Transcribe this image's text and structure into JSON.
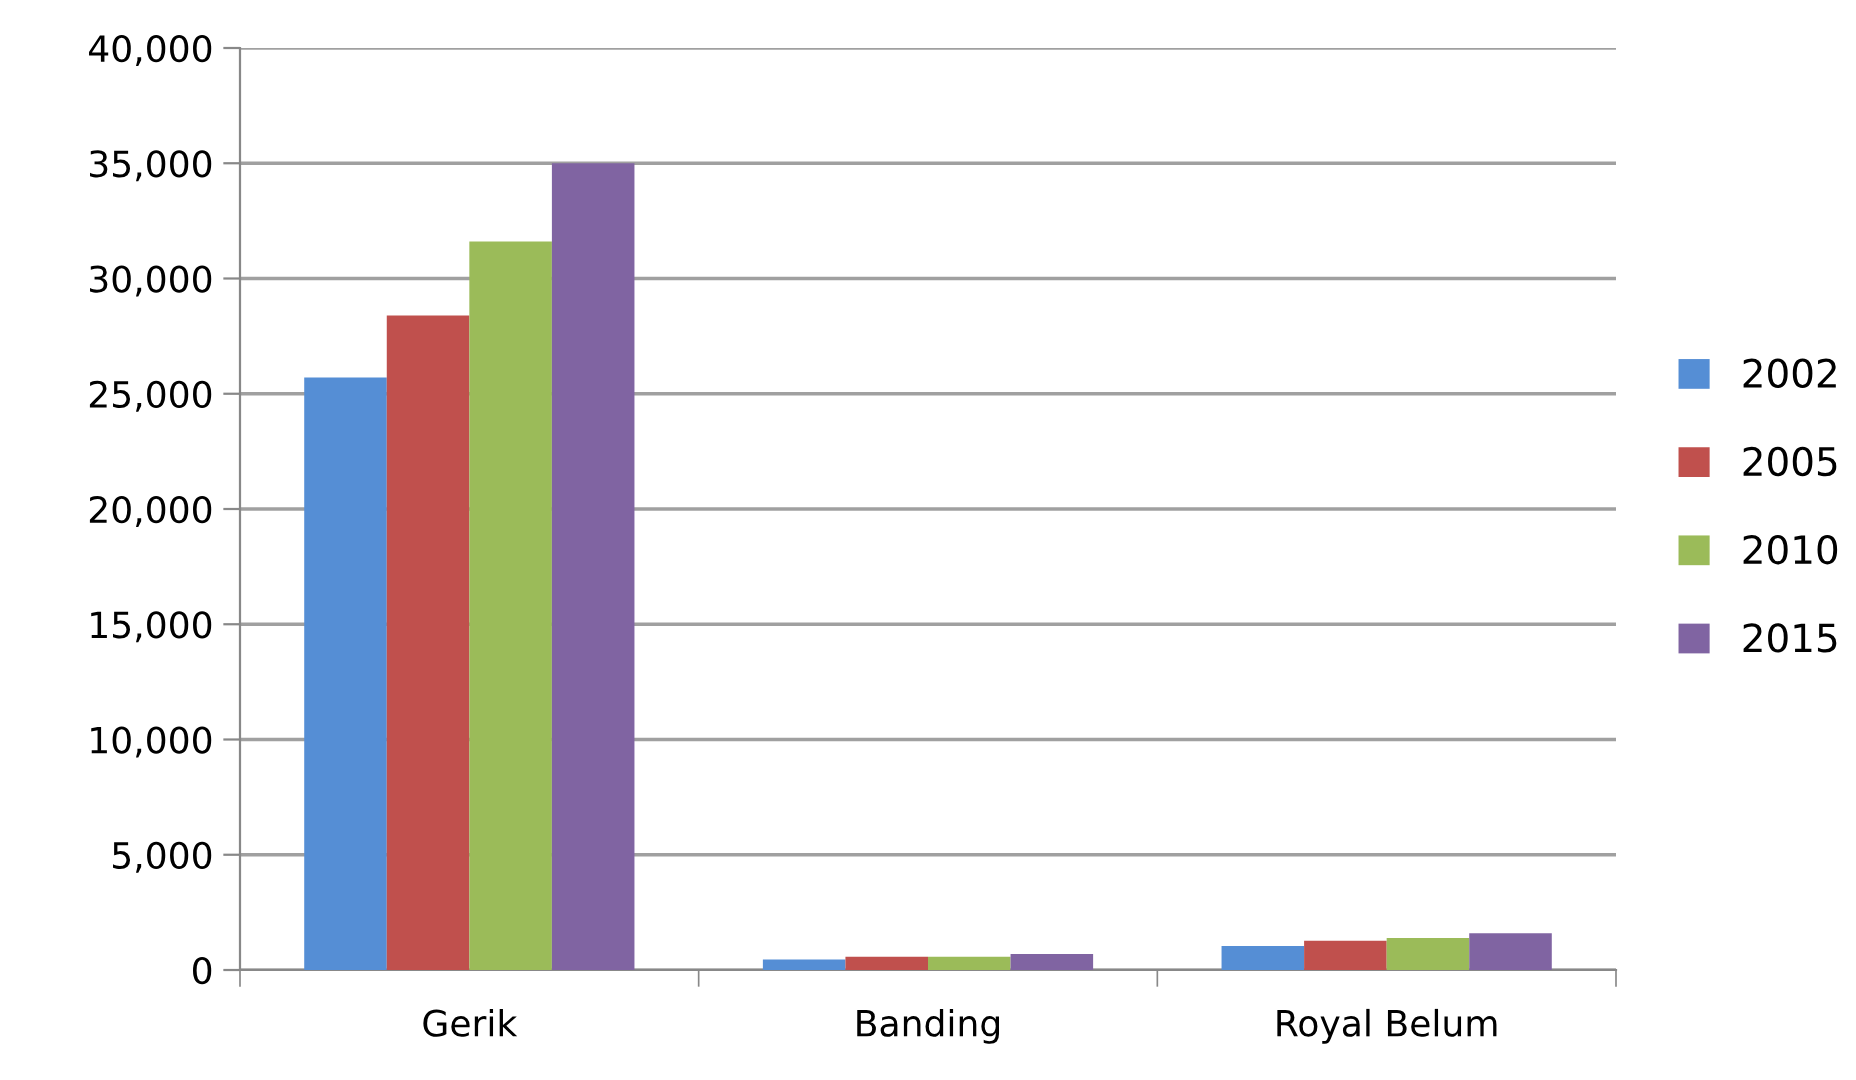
{
  "chart_data": {
    "type": "bar",
    "categories": [
      "Gerik",
      "Banding",
      "Royal Belum"
    ],
    "series": [
      {
        "name": "2002",
        "color": "#558ed5",
        "values": [
          25700,
          460,
          1040
        ]
      },
      {
        "name": "2005",
        "color": "#c0504d",
        "values": [
          28400,
          580,
          1270
        ]
      },
      {
        "name": "2010",
        "color": "#9bbb59",
        "values": [
          31600,
          580,
          1390
        ]
      },
      {
        "name": "2015",
        "color": "#8064a2",
        "values": [
          35000,
          690,
          1590
        ]
      }
    ],
    "ylim": [
      0,
      40000
    ],
    "yticks": [
      {
        "value": 0,
        "label": "0"
      },
      {
        "value": 5000,
        "label": "5,000"
      },
      {
        "value": 10000,
        "label": "10,000"
      },
      {
        "value": 15000,
        "label": "15,000"
      },
      {
        "value": 20000,
        "label": "20,000"
      },
      {
        "value": 25000,
        "label": "25,000"
      },
      {
        "value": 30000,
        "label": "30,000"
      },
      {
        "value": 35000,
        "label": "35,000"
      },
      {
        "value": 40000,
        "label": "40,000"
      }
    ],
    "grid": "y",
    "legend": "right"
  }
}
